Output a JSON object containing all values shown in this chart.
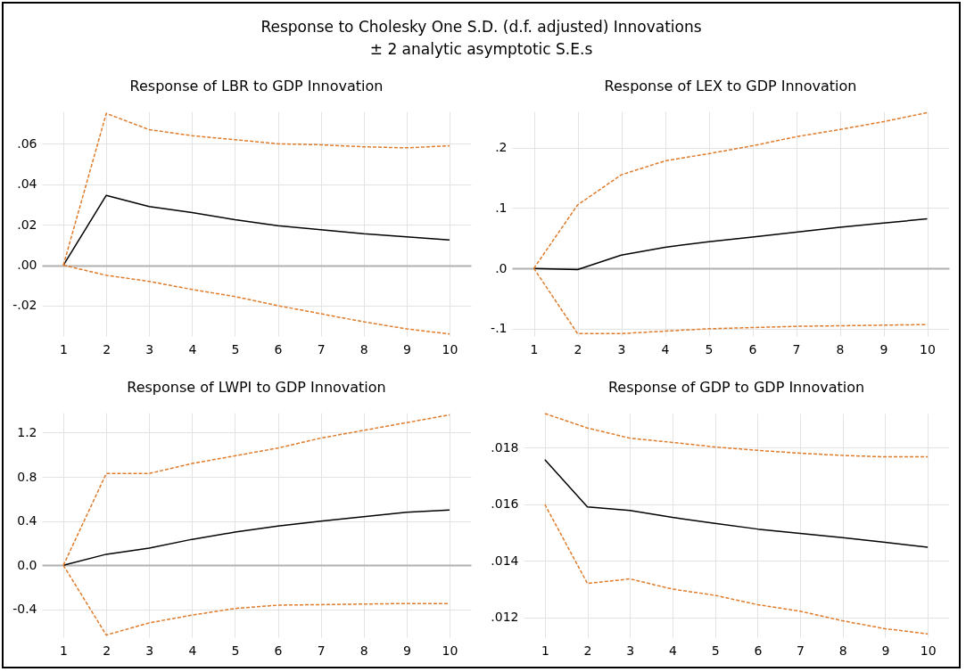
{
  "chart_data": [
    {
      "type": "line",
      "title": "Response of LBR to GDP Innovation",
      "annotations": [
        "Response to Cholesky One S.D. (d.f. adjusted) Innovations",
        "± 2 analytic asymptotic S.E.s"
      ],
      "categories": [
        "1",
        "2",
        "3",
        "4",
        "5",
        "6",
        "7",
        "8",
        "9",
        "10"
      ],
      "ylim": [
        -0.035,
        0.076
      ],
      "yticks": [
        {
          "value": -0.02,
          "label": "-.02"
        },
        {
          "value": 0,
          "label": ".00"
        },
        {
          "value": 0.02,
          "label": ".02"
        },
        {
          "value": 0.04,
          "label": ".04"
        },
        {
          "value": 0.06,
          "label": ".06"
        }
      ],
      "grid": true,
      "series": [
        {
          "color": "#000000",
          "line_style": "solid",
          "values": [
            0,
            0.0345,
            0.029,
            0.026,
            0.0225,
            0.0195,
            0.0175,
            0.0155,
            0.014,
            0.0125
          ]
        },
        {
          "color": "#e07b2a",
          "line_style": "dashed",
          "values": [
            0,
            0.075,
            0.067,
            0.064,
            0.062,
            0.06,
            0.0595,
            0.0585,
            0.058,
            0.059
          ]
        },
        {
          "color": "#e07b2a",
          "line_style": "dashed",
          "values": [
            0,
            -0.005,
            -0.008,
            -0.012,
            -0.0155,
            -0.02,
            -0.024,
            -0.028,
            -0.0315,
            -0.034
          ]
        }
      ]
    },
    {
      "type": "line",
      "title": "Response of LEX to GDP Innovation",
      "categories": [
        "1",
        "2",
        "3",
        "4",
        "5",
        "6",
        "7",
        "8",
        "9",
        "10"
      ],
      "ylim": [
        -0.112,
        0.26
      ],
      "yticks": [
        {
          "value": -0.1,
          "label": "-.1"
        },
        {
          "value": 0,
          "label": ".0"
        },
        {
          "value": 0.1,
          "label": ".1"
        },
        {
          "value": 0.2,
          "label": ".2"
        }
      ],
      "grid": true,
      "series": [
        {
          "color": "#000000",
          "line_style": "solid",
          "values": [
            0,
            -0.002,
            0.022,
            0.035,
            0.044,
            0.052,
            0.06,
            0.068,
            0.075,
            0.082
          ]
        },
        {
          "color": "#e07b2a",
          "line_style": "dashed",
          "values": [
            0,
            0.105,
            0.155,
            0.178,
            0.19,
            0.203,
            0.218,
            0.23,
            0.243,
            0.258
          ]
        },
        {
          "color": "#e07b2a",
          "line_style": "dashed",
          "values": [
            0,
            -0.108,
            -0.108,
            -0.104,
            -0.1,
            -0.098,
            -0.096,
            -0.095,
            -0.094,
            -0.093
          ]
        }
      ]
    },
    {
      "type": "line",
      "title": "Response of LWPI to GDP Innovation",
      "categories": [
        "1",
        "2",
        "3",
        "4",
        "5",
        "6",
        "7",
        "8",
        "9",
        "10"
      ],
      "ylim": [
        -0.65,
        1.38
      ],
      "yticks": [
        {
          "value": -0.4,
          "label": "-0.4"
        },
        {
          "value": 0,
          "label": "0.0"
        },
        {
          "value": 0.4,
          "label": "0.4"
        },
        {
          "value": 0.8,
          "label": "0.8"
        },
        {
          "value": 1.2,
          "label": "1.2"
        }
      ],
      "grid": true,
      "series": [
        {
          "color": "#000000",
          "line_style": "solid",
          "values": [
            0,
            0.1,
            0.155,
            0.235,
            0.3,
            0.355,
            0.4,
            0.44,
            0.48,
            0.5
          ]
        },
        {
          "color": "#e07b2a",
          "line_style": "dashed",
          "values": [
            0,
            0.83,
            0.83,
            0.92,
            0.99,
            1.06,
            1.15,
            1.22,
            1.29,
            1.36
          ]
        },
        {
          "color": "#e07b2a",
          "line_style": "dashed",
          "values": [
            0,
            -0.63,
            -0.52,
            -0.45,
            -0.39,
            -0.36,
            -0.355,
            -0.35,
            -0.345,
            -0.345
          ]
        }
      ]
    },
    {
      "type": "line",
      "title": "Response of GDP to GDP Innovation",
      "categories": [
        "1",
        "2",
        "3",
        "4",
        "5",
        "6",
        "7",
        "8",
        "9",
        "10"
      ],
      "ylim": [
        0.0113,
        0.0192
      ],
      "yticks": [
        {
          "value": 0.012,
          "label": ".012"
        },
        {
          "value": 0.014,
          "label": ".014"
        },
        {
          "value": 0.016,
          "label": ".016"
        },
        {
          "value": 0.018,
          "label": ".018"
        }
      ],
      "grid": true,
      "series": [
        {
          "color": "#000000",
          "line_style": "solid",
          "values": [
            0.01757,
            0.0159,
            0.01578,
            0.01553,
            0.01532,
            0.01512,
            0.01497,
            0.01482,
            0.01465,
            0.01448
          ]
        },
        {
          "color": "#e07b2a",
          "line_style": "dashed",
          "values": [
            0.0192,
            0.01869,
            0.01833,
            0.01818,
            0.01802,
            0.0179,
            0.0178,
            0.01772,
            0.01767,
            0.01767
          ]
        },
        {
          "color": "#e07b2a",
          "line_style": "dashed",
          "values": [
            0.01599,
            0.0132,
            0.01336,
            0.013,
            0.01278,
            0.01245,
            0.01222,
            0.01188,
            0.0116,
            0.01142
          ]
        }
      ]
    }
  ]
}
